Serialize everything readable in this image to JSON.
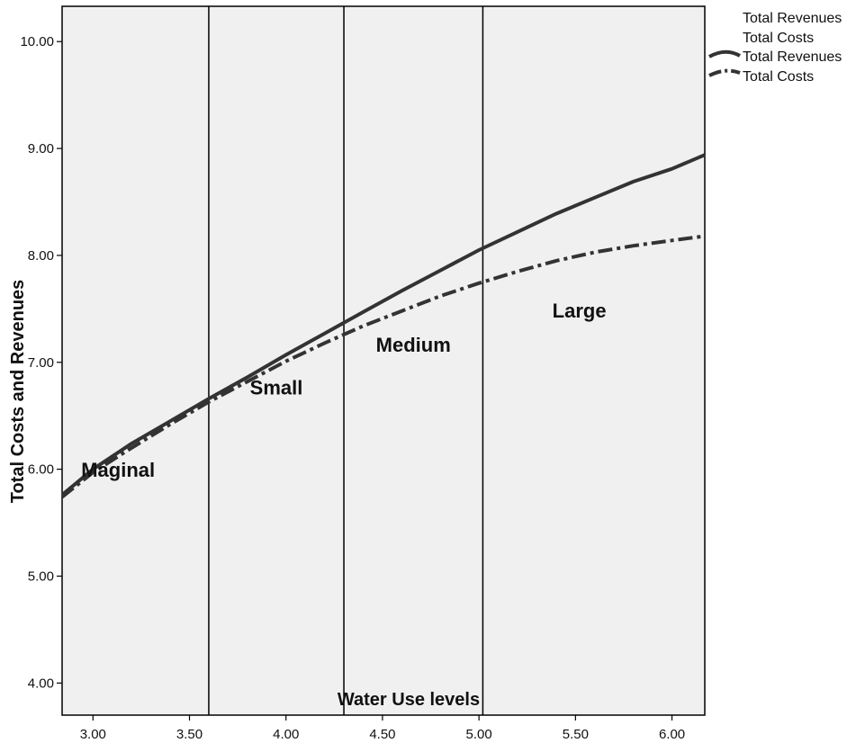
{
  "chart_data": {
    "type": "line",
    "xlabel": "Water Use levels",
    "ylabel": "Total Costs and Revenues",
    "xlim": [
      2.84,
      6.17
    ],
    "ylim": [
      3.7,
      10.33
    ],
    "x_ticks": [
      "3.00",
      "3.50",
      "4.00",
      "4.50",
      "5.00",
      "5.50",
      "6.00"
    ],
    "y_ticks": [
      "4.00",
      "5.00",
      "6.00",
      "7.00",
      "8.00",
      "9.00",
      "10.00"
    ],
    "grid": false,
    "legend_position": "top-right",
    "legend_entries": [
      "Total Revenues",
      "Total Costs",
      "Total Revenues",
      "Total Costs"
    ],
    "region_boundaries": [
      3.6,
      4.3,
      5.02
    ],
    "region_labels": [
      {
        "text": "Maginal",
        "x": 3.13,
        "y": 5.93
      },
      {
        "text": "Small",
        "x": 3.95,
        "y": 6.7
      },
      {
        "text": "Medium",
        "x": 4.66,
        "y": 7.1
      },
      {
        "text": "Large",
        "x": 5.52,
        "y": 7.42
      }
    ],
    "series": [
      {
        "name": "Total Revenues",
        "style": "solid",
        "x": [
          2.84,
          3.0,
          3.2,
          3.4,
          3.6,
          3.8,
          4.0,
          4.2,
          4.4,
          4.6,
          4.8,
          5.0,
          5.2,
          5.4,
          5.6,
          5.8,
          6.0,
          6.17
        ],
        "y": [
          5.76,
          6.0,
          6.24,
          6.45,
          6.66,
          6.86,
          7.07,
          7.27,
          7.47,
          7.67,
          7.86,
          8.05,
          8.22,
          8.39,
          8.54,
          8.69,
          8.81,
          8.94
        ]
      },
      {
        "name": "Total Costs",
        "style": "dash-dot",
        "x": [
          2.84,
          3.0,
          3.2,
          3.4,
          3.6,
          3.8,
          4.0,
          4.2,
          4.4,
          4.6,
          4.8,
          5.0,
          5.2,
          5.4,
          5.6,
          5.8,
          6.0,
          6.17
        ],
        "y": [
          5.74,
          5.97,
          6.2,
          6.42,
          6.63,
          6.82,
          7.01,
          7.18,
          7.34,
          7.48,
          7.62,
          7.74,
          7.85,
          7.95,
          8.03,
          8.09,
          8.14,
          8.18
        ]
      }
    ]
  }
}
